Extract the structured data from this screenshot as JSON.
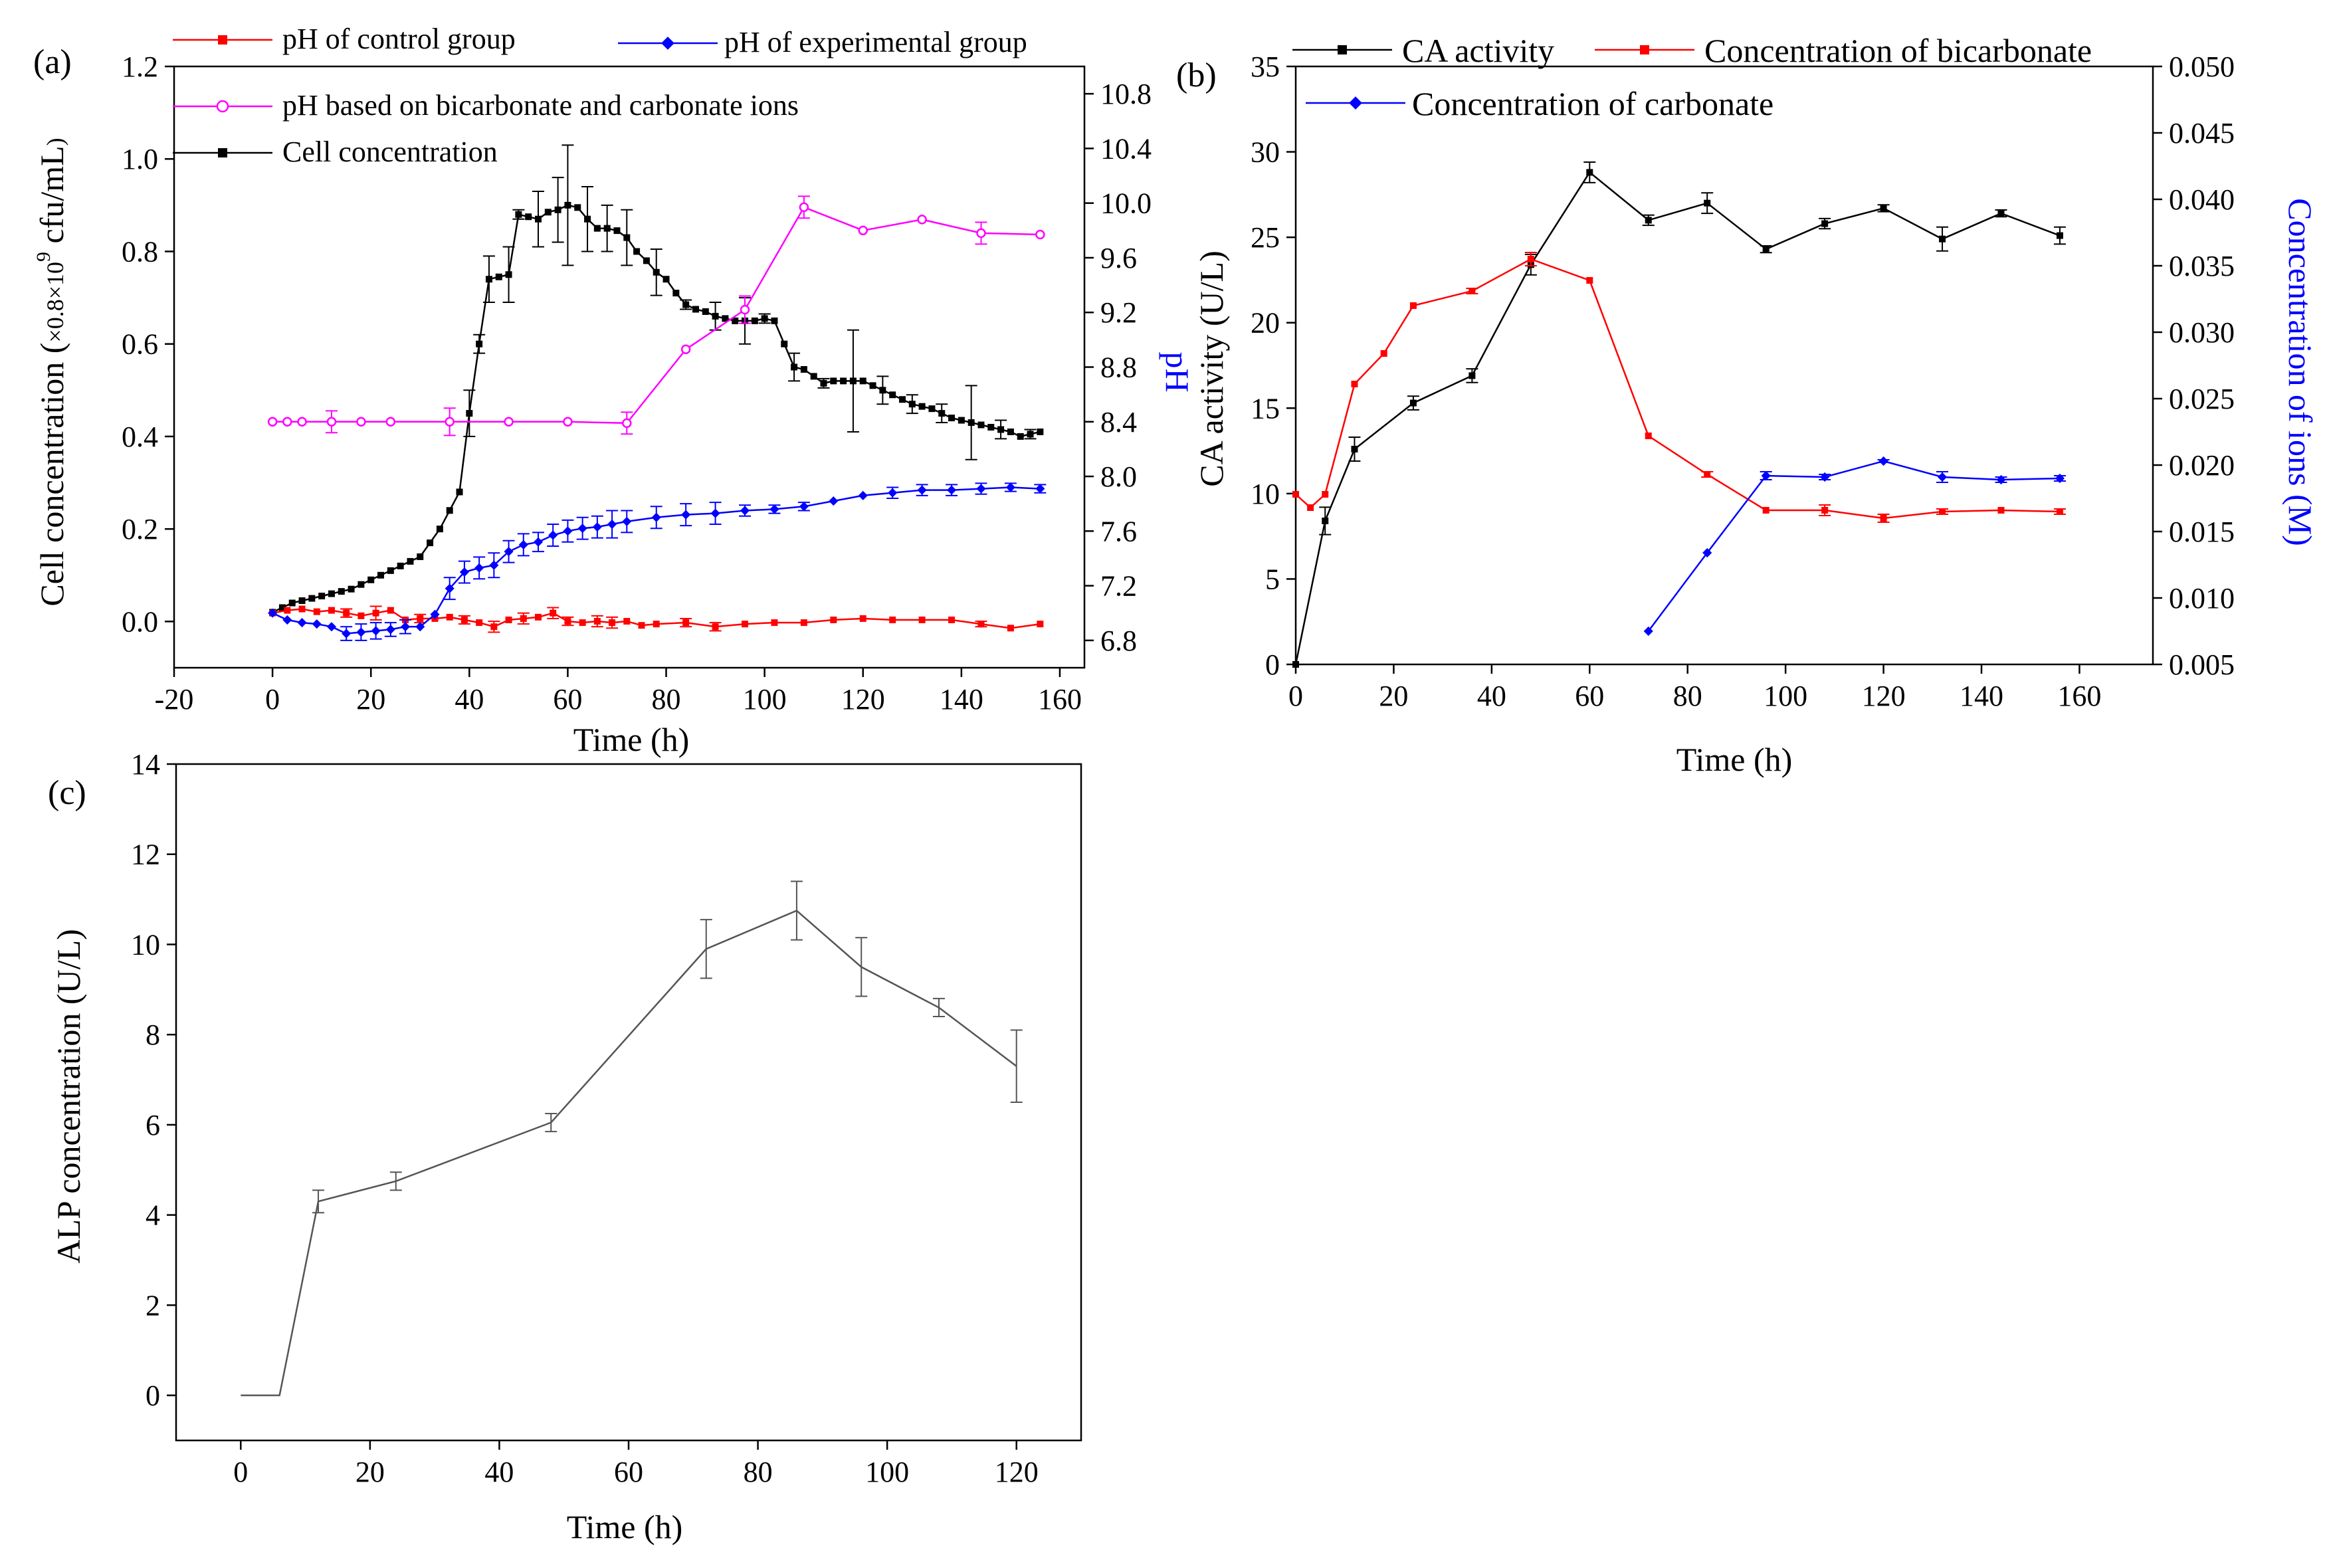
{
  "figure": {
    "panel_labels": [
      "(a)",
      "(b)",
      "(c)"
    ]
  },
  "chart_data": [
    {
      "panel": "(a)",
      "type": "line",
      "title": "",
      "xlabel": "Time (h)",
      "ylabel_parts": [
        "Cell concentration (",
        "×0.8×10",
        "9",
        " cfu/mL",
        ")"
      ],
      "y2label": "pH",
      "xlim": [
        -20,
        165
      ],
      "ylim": [
        -0.1,
        1.2
      ],
      "y2lim": [
        6.6,
        11.0
      ],
      "xticks": [
        -20,
        0,
        20,
        40,
        60,
        80,
        100,
        120,
        140,
        160
      ],
      "xtick_labels": [
        "-20",
        "0",
        "20",
        "40",
        "60",
        "80",
        "100",
        "120",
        "140",
        "160"
      ],
      "yticks": [
        0.0,
        0.2,
        0.4,
        0.6,
        0.8,
        1.0,
        1.2
      ],
      "ytick_labels": [
        "0.0",
        "0.2",
        "0.4",
        "0.6",
        "0.8",
        "1.0",
        "1.2"
      ],
      "y2ticks": [
        6.8,
        7.2,
        7.6,
        8.0,
        8.4,
        8.8,
        9.2,
        9.6,
        10.0,
        10.4,
        10.8
      ],
      "y2tick_labels": [
        "6.8",
        "7.2",
        "7.6",
        "8.0",
        "8.4",
        "8.8",
        "9.2",
        "9.6",
        "10.0",
        "10.4",
        "10.8"
      ],
      "legend": [
        "pH of control group",
        "pH of experimental group",
        "pH based on bicarbonate and carbonate ions",
        "Cell concentration"
      ],
      "series": [
        {
          "name": "Cell concentration",
          "axis": "left",
          "color": "#000000",
          "marker": "square",
          "x": [
            0,
            2,
            4,
            6,
            8,
            10,
            12,
            14,
            16,
            18,
            20,
            22,
            24,
            26,
            28,
            30,
            32,
            34,
            36,
            38,
            40,
            42,
            44,
            46,
            48,
            50,
            52,
            54,
            56,
            58,
            60,
            62,
            64,
            66,
            68,
            70,
            72,
            74,
            76,
            78,
            80,
            82,
            84,
            86,
            88,
            90,
            92,
            94,
            96,
            98,
            100,
            102,
            104,
            106,
            108,
            110,
            112,
            114,
            116,
            118,
            120,
            122,
            124,
            126,
            128,
            130,
            132,
            134,
            136,
            138,
            140,
            142,
            144,
            146,
            148,
            150,
            152,
            154,
            156
          ],
          "y": [
            0.02,
            0.03,
            0.04,
            0.045,
            0.05,
            0.055,
            0.06,
            0.065,
            0.07,
            0.08,
            0.09,
            0.1,
            0.11,
            0.12,
            0.13,
            0.14,
            0.17,
            0.2,
            0.24,
            0.28,
            0.45,
            0.6,
            0.74,
            0.745,
            0.75,
            0.88,
            0.875,
            0.87,
            0.885,
            0.89,
            0.9,
            0.895,
            0.87,
            0.85,
            0.85,
            0.845,
            0.83,
            0.8,
            0.78,
            0.755,
            0.74,
            0.71,
            0.685,
            0.675,
            0.67,
            0.66,
            0.655,
            0.65,
            0.65,
            0.65,
            0.655,
            0.65,
            0.6,
            0.55,
            0.545,
            0.53,
            0.515,
            0.52,
            0.52,
            0.52,
            0.52,
            0.51,
            0.5,
            0.49,
            0.48,
            0.47,
            0.465,
            0.46,
            0.45,
            0.44,
            0.435,
            0.43,
            0.425,
            0.42,
            0.415,
            0.41,
            0.4,
            0.405,
            0.41
          ],
          "err": [
            0.0,
            0.0,
            0.0,
            0.0,
            0.0,
            0.0,
            0.0,
            0.0,
            0.0,
            0.0,
            0.0,
            0.0,
            0.0,
            0.0,
            0.0,
            0.0,
            0.0,
            0.0,
            0.0,
            0.0,
            0.05,
            0.02,
            0.05,
            0.0,
            0.06,
            0.01,
            0.0,
            0.06,
            0.0,
            0.07,
            0.13,
            0.0,
            0.07,
            0.0,
            0.05,
            0.0,
            0.06,
            0.0,
            0.0,
            0.05,
            0.0,
            0.0,
            0.01,
            0.0,
            0.0,
            0.03,
            0.0,
            0.0,
            0.05,
            0.0,
            0.01,
            0.0,
            0.0,
            0.03,
            0.0,
            0.0,
            0.01,
            0.0,
            0.0,
            0.11,
            0.0,
            0.0,
            0.03,
            0.0,
            0.0,
            0.02,
            0.0,
            0.0,
            0.02,
            0.0,
            0.0,
            0.08,
            0.0,
            0.0,
            0.02,
            0.0,
            0.0,
            0.01,
            0.0
          ]
        },
        {
          "name": "pH of control group",
          "axis": "right",
          "color": "#ff0000",
          "marker": "square",
          "x": [
            0,
            3,
            6,
            9,
            12,
            15,
            18,
            21,
            24,
            27,
            30,
            33,
            36,
            39,
            42,
            45,
            48,
            51,
            54,
            57,
            60,
            63,
            66,
            69,
            72,
            75,
            78,
            84,
            90,
            96,
            102,
            108,
            114,
            120,
            126,
            132,
            138,
            144,
            150,
            156
          ],
          "y": [
            7.0,
            7.02,
            7.03,
            7.01,
            7.02,
            7.0,
            6.98,
            7.0,
            7.02,
            6.95,
            6.96,
            6.96,
            6.97,
            6.95,
            6.93,
            6.9,
            6.95,
            6.96,
            6.97,
            7.0,
            6.94,
            6.93,
            6.94,
            6.93,
            6.94,
            6.91,
            6.92,
            6.93,
            6.9,
            6.92,
            6.93,
            6.93,
            6.95,
            6.96,
            6.95,
            6.95,
            6.95,
            6.92,
            6.89,
            6.92
          ],
          "err": [
            0.0,
            0.0,
            0.0,
            0.0,
            0.0,
            0.03,
            0.0,
            0.05,
            0.0,
            0.0,
            0.03,
            0.0,
            0.0,
            0.03,
            0.0,
            0.04,
            0.0,
            0.04,
            0.0,
            0.04,
            0.03,
            0.0,
            0.04,
            0.04,
            0.0,
            0.0,
            0.0,
            0.03,
            0.03,
            0.0,
            0.0,
            0.0,
            0.0,
            0.0,
            0.0,
            0.0,
            0.0,
            0.02,
            0.0,
            0.0
          ]
        },
        {
          "name": "pH of experimental group",
          "axis": "right",
          "color": "#0000ff",
          "marker": "diamond",
          "x": [
            0,
            3,
            6,
            9,
            12,
            15,
            18,
            21,
            24,
            27,
            30,
            33,
            36,
            39,
            42,
            45,
            48,
            51,
            54,
            57,
            60,
            63,
            66,
            69,
            72,
            78,
            84,
            90,
            96,
            102,
            108,
            114,
            120,
            126,
            132,
            138,
            144,
            150,
            156
          ],
          "y": [
            7.0,
            6.95,
            6.93,
            6.92,
            6.9,
            6.85,
            6.86,
            6.87,
            6.88,
            6.9,
            6.9,
            6.99,
            7.18,
            7.3,
            7.33,
            7.35,
            7.45,
            7.5,
            7.52,
            7.57,
            7.6,
            7.62,
            7.63,
            7.65,
            7.67,
            7.7,
            7.72,
            7.73,
            7.75,
            7.76,
            7.78,
            7.82,
            7.86,
            7.88,
            7.9,
            7.9,
            7.91,
            7.92,
            7.91
          ],
          "err": [
            0.0,
            0.0,
            0.0,
            0.0,
            0.0,
            0.05,
            0.06,
            0.06,
            0.05,
            0.05,
            0.0,
            0.0,
            0.08,
            0.08,
            0.08,
            0.09,
            0.08,
            0.08,
            0.07,
            0.08,
            0.08,
            0.08,
            0.08,
            0.1,
            0.08,
            0.08,
            0.08,
            0.08,
            0.04,
            0.03,
            0.03,
            0.0,
            0.0,
            0.04,
            0.04,
            0.04,
            0.04,
            0.03,
            0.03
          ]
        },
        {
          "name": "pH based on bicarbonate and carbonate ions",
          "axis": "right",
          "color": "#ff00ff",
          "marker": "circle",
          "x": [
            0,
            3,
            6,
            12,
            18,
            24,
            36,
            48,
            60,
            72,
            84,
            96,
            108,
            120,
            132,
            144,
            156
          ],
          "y": [
            8.4,
            8.4,
            8.4,
            8.4,
            8.4,
            8.4,
            8.4,
            8.4,
            8.4,
            8.39,
            8.93,
            9.22,
            9.97,
            9.8,
            9.88,
            9.78,
            9.77
          ],
          "err": [
            0.0,
            0.0,
            0.0,
            0.08,
            0.0,
            0.0,
            0.1,
            0.0,
            0.0,
            0.08,
            0.0,
            0.1,
            0.08,
            0.0,
            0.0,
            0.08,
            0.0
          ]
        }
      ]
    },
    {
      "panel": "(b)",
      "type": "line",
      "title": "",
      "xlabel": "Time (h)",
      "ylabel": "CA activity (U/L)",
      "y2label": "Concentration of ions (M)",
      "xlim": [
        0,
        175
      ],
      "ylim": [
        0,
        35
      ],
      "y2lim": [
        0.005,
        0.05
      ],
      "xticks": [
        0,
        20,
        40,
        60,
        80,
        100,
        120,
        140,
        160
      ],
      "xtick_labels": [
        "0",
        "20",
        "40",
        "60",
        "80",
        "100",
        "120",
        "140",
        "160"
      ],
      "yticks": [
        0,
        5,
        10,
        15,
        20,
        25,
        30,
        35
      ],
      "ytick_labels": [
        "0",
        "5",
        "10",
        "15",
        "20",
        "25",
        "30",
        "35"
      ],
      "y2ticks": [
        0.005,
        0.01,
        0.015,
        0.02,
        0.025,
        0.03,
        0.035,
        0.04,
        0.045,
        0.05
      ],
      "y2tick_labels": [
        "0.005",
        "0.010",
        "0.015",
        "0.020",
        "0.025",
        "0.030",
        "0.035",
        "0.040",
        "0.045",
        "0.050"
      ],
      "legend": [
        "CA activity",
        "Concentration of bicarbonate",
        "Concentration of carbonate"
      ],
      "series": [
        {
          "name": "CA activity",
          "axis": "left",
          "color": "#000000",
          "marker": "square",
          "x": [
            0,
            6,
            12,
            24,
            36,
            48,
            60,
            72,
            84,
            96,
            108,
            120,
            132,
            144,
            156
          ],
          "y": [
            0,
            8.4,
            12.6,
            15.3,
            16.9,
            23.4,
            28.8,
            26.0,
            27.0,
            24.3,
            25.8,
            26.7,
            24.9,
            26.4,
            25.1
          ],
          "err": [
            0,
            0.8,
            0.7,
            0.4,
            0.4,
            0.6,
            0.6,
            0.3,
            0.6,
            0.2,
            0.3,
            0.2,
            0.7,
            0.2,
            0.5
          ]
        },
        {
          "name": "Concentration of bicarbonate",
          "axis": "right",
          "color": "#ff0000",
          "marker": "square",
          "x": [
            0,
            3,
            6,
            12,
            18,
            24,
            36,
            48,
            60,
            72,
            84,
            96,
            108,
            120,
            132,
            144,
            156
          ],
          "y": [
            0.0178,
            0.0168,
            0.0178,
            0.0261,
            0.0284,
            0.032,
            0.0331,
            0.0355,
            0.0339,
            0.0222,
            0.0193,
            0.0166,
            0.0166,
            0.016,
            0.0165,
            0.0166,
            0.0165
          ],
          "err": [
            0,
            0,
            0,
            0,
            0,
            0,
            0.0002,
            0.0005,
            0,
            0,
            0.0002,
            0,
            0.0004,
            0.0003,
            0.0002,
            0,
            0.0002
          ]
        },
        {
          "name": "Concentration of carbonate",
          "axis": "right",
          "color": "#0000ff",
          "marker": "diamond",
          "x": [
            72,
            84,
            96,
            108,
            120,
            132,
            144,
            156
          ],
          "y": [
            0.0075,
            0.0134,
            0.0192,
            0.0191,
            0.0203,
            0.0191,
            0.0189,
            0.019
          ],
          "err": [
            0,
            0,
            0.0003,
            0.0002,
            0.0001,
            0.0004,
            0.0002,
            0.0002
          ]
        }
      ]
    },
    {
      "panel": "(c)",
      "type": "line",
      "title": "",
      "xlabel": "Time (h)",
      "ylabel": "ALP concentration (U/L)",
      "xlim": [
        -10,
        130
      ],
      "ylim": [
        -1,
        14
      ],
      "xticks": [
        0,
        20,
        40,
        60,
        80,
        100,
        120
      ],
      "xtick_labels": [
        "0",
        "20",
        "40",
        "60",
        "80",
        "100",
        "120"
      ],
      "yticks": [
        0,
        2,
        4,
        6,
        8,
        10,
        12,
        14
      ],
      "ytick_labels": [
        "0",
        "2",
        "4",
        "6",
        "8",
        "10",
        "12",
        "14"
      ],
      "series": [
        {
          "name": "ALP concentration",
          "axis": "left",
          "color": "#555555",
          "marker": "none",
          "x": [
            0,
            6,
            12,
            24,
            48,
            72,
            86,
            96,
            108,
            120
          ],
          "y": [
            0,
            0,
            4.3,
            4.75,
            6.05,
            9.9,
            10.75,
            9.5,
            8.6,
            7.3
          ],
          "err": [
            0,
            0,
            0.25,
            0.2,
            0.2,
            0.65,
            0.65,
            0.65,
            0.2,
            0.8
          ]
        }
      ]
    }
  ]
}
